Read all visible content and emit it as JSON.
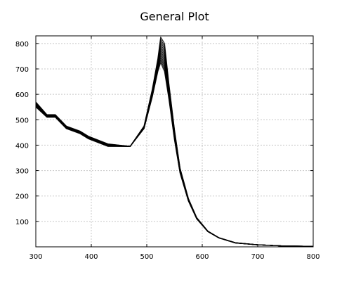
{
  "chart_data": {
    "type": "line",
    "title": "General Plot",
    "xlabel": "",
    "ylabel": "",
    "xlim": [
      300,
      800
    ],
    "ylim": [
      0,
      830
    ],
    "xticks": [
      300,
      400,
      500,
      600,
      700,
      800
    ],
    "yticks": [
      100,
      200,
      300,
      400,
      500,
      600,
      700,
      800
    ],
    "grid": true,
    "legend": "none",
    "line_color": "#000000",
    "series_count": 12,
    "x": [
      300,
      320,
      335,
      355,
      380,
      395,
      430,
      470,
      495,
      510,
      520,
      525,
      532,
      540,
      550,
      560,
      575,
      590,
      610,
      630,
      660,
      700,
      750,
      800
    ],
    "series_low": {
      "values": [
        550,
        510,
        510,
        465,
        445,
        425,
        395,
        395,
        465,
        590,
        690,
        725,
        690,
        580,
        420,
        290,
        180,
        110,
        60,
        35,
        15,
        8,
        3,
        2
      ]
    },
    "series_high": {
      "values": [
        570,
        520,
        520,
        475,
        455,
        435,
        405,
        395,
        475,
        620,
        740,
        825,
        800,
        640,
        460,
        310,
        190,
        115,
        62,
        36,
        16,
        8,
        3,
        2
      ]
    }
  }
}
